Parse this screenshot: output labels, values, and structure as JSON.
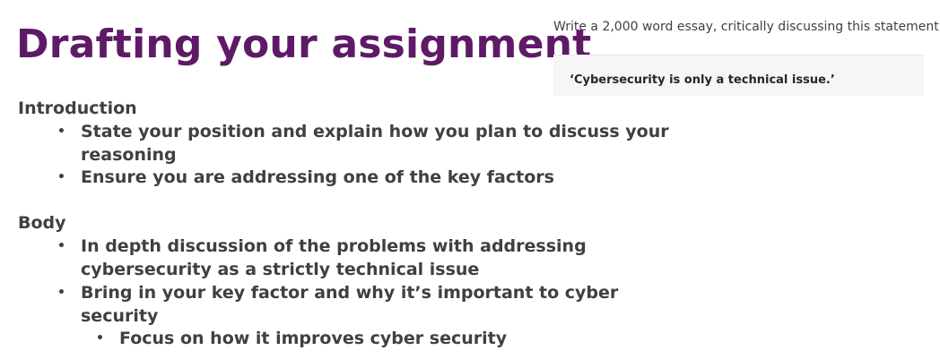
{
  "slide": {
    "title": "Drafting your assignment"
  },
  "prompt": {
    "instruction": "Write a 2,000 word essay, critically discussing this statement:",
    "statement": "‘Cybersecurity is only a technical issue.’"
  },
  "sections": [
    {
      "heading": "Introduction",
      "bullets": [
        "State your position and explain how you plan to discuss your reasoning",
        "Ensure you are addressing one of the key factors"
      ]
    },
    {
      "heading": "Body",
      "bullets": [
        "In depth discussion of the problems with addressing cybersecurity as a strictly technical issue",
        "Bring in your key factor and why it’s important to cyber security"
      ],
      "sub_bullets": [
        "Focus on how it improves cyber security"
      ]
    }
  ],
  "bullet_glyph": "•",
  "colors": {
    "title": "#5e1a66",
    "body_text": "#404040",
    "statement_box": "#f6f6f6"
  }
}
